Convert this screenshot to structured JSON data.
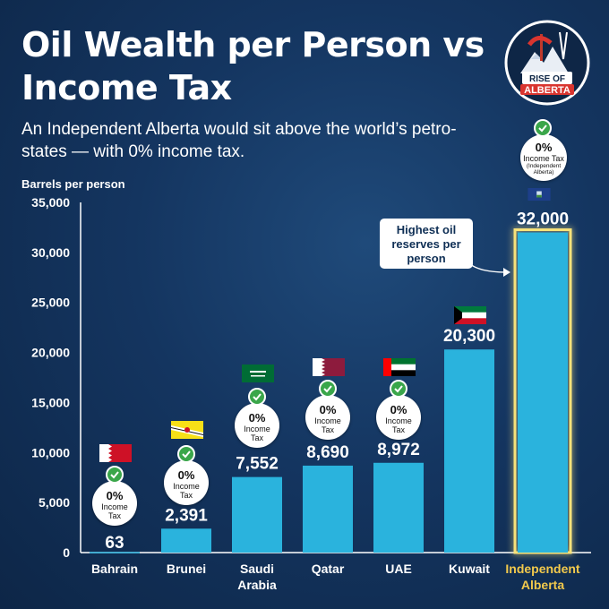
{
  "title": "Oil Wealth per Person vs Income Tax",
  "subtitle": "An Independent Alberta would sit above the world’s petro-states — with 0% income tax.",
  "logo": {
    "line1": "RISE OF",
    "line2": "ALBERTA"
  },
  "callout": "Highest oil\nreserves per\nperson",
  "badge": {
    "pct": "0%",
    "line1": "Income",
    "line2": "Tax",
    "alberta_line": "Income Tax",
    "alberta_sub": "(Independent Alberta)"
  },
  "colors": {
    "bar": "#2ab3dd",
    "highlight_text": "#f2c94c",
    "check": "#3aa64a"
  },
  "chart_data": {
    "type": "bar",
    "title": "Oil Wealth per Person vs Income Tax",
    "ylabel": "Barrels per person",
    "xlabel": "",
    "ylim": [
      0,
      35000
    ],
    "yticks": [
      "35,000",
      "30,000",
      "25,000",
      "20,000",
      "15,000",
      "10,000",
      "5,000",
      "0"
    ],
    "ytick_values": [
      35000,
      30000,
      25000,
      20000,
      15000,
      10000,
      5000,
      0
    ],
    "grid": false,
    "categories": [
      "Bahrain",
      "Brunei",
      "Saudi Arabia",
      "Qatar",
      "UAE",
      "Kuwait",
      "Independent Alberta"
    ],
    "category_lines": [
      [
        "Bahrain"
      ],
      [
        "Brunei"
      ],
      [
        "Saudi",
        "Arabia"
      ],
      [
        "Qatar"
      ],
      [
        "UAE"
      ],
      [
        "Kuwait"
      ],
      [
        "Independent",
        "Alberta"
      ]
    ],
    "values": [
      63,
      2391,
      7552,
      8690,
      8972,
      20300,
      32000
    ],
    "value_labels": [
      "63",
      "2,391",
      "7,552",
      "8,690",
      "8,972",
      "20,300",
      "32,000"
    ],
    "zero_income_tax": [
      true,
      true,
      true,
      true,
      true,
      false,
      true
    ],
    "highlight": "Independent Alberta"
  }
}
